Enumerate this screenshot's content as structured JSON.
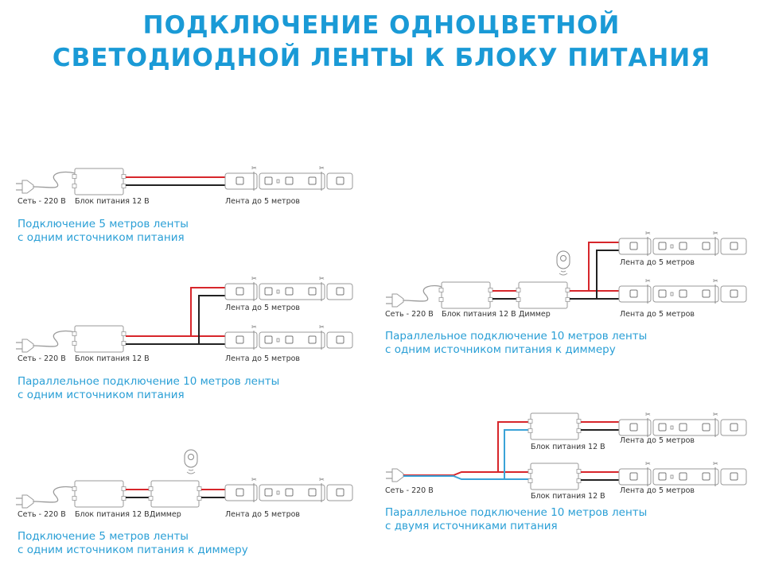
{
  "title": {
    "line1": "ПОДКЛЮЧЕНИЕ ОДНОЦВЕТНОЙ",
    "line2": "СВЕТОДИОДНОЙ ЛЕНТЫ К БЛОКУ ПИТАНИЯ"
  },
  "colors": {
    "accent": "#1a9ad6",
    "positive_wire": "#d7262b",
    "negative_wire": "#222222",
    "neutral_wire": "#3aa3d8",
    "outline": "#9a9a9a"
  },
  "labels": {
    "mains": "Сеть - 220 В",
    "psu": "Блок питания 12 В",
    "strip": "Лента до 5 метров",
    "dimmer": "Диммер"
  },
  "diagrams": [
    {
      "caption1": "Подключение 5 метров ленты",
      "caption2": "с одним источником питания"
    },
    {
      "caption1": "Параллельное подключение 10 метров ленты",
      "caption2": "с одним источником питания"
    },
    {
      "caption1": "Подключение 5 метров ленты",
      "caption2": "с одним источником питания к диммеру"
    },
    {
      "caption1": "Параллельное подключение 10 метров ленты",
      "caption2": "с одним источником питания к диммеру"
    },
    {
      "caption1": "Параллельное подключение 10 метров ленты",
      "caption2": "с двумя источниками питания"
    }
  ]
}
